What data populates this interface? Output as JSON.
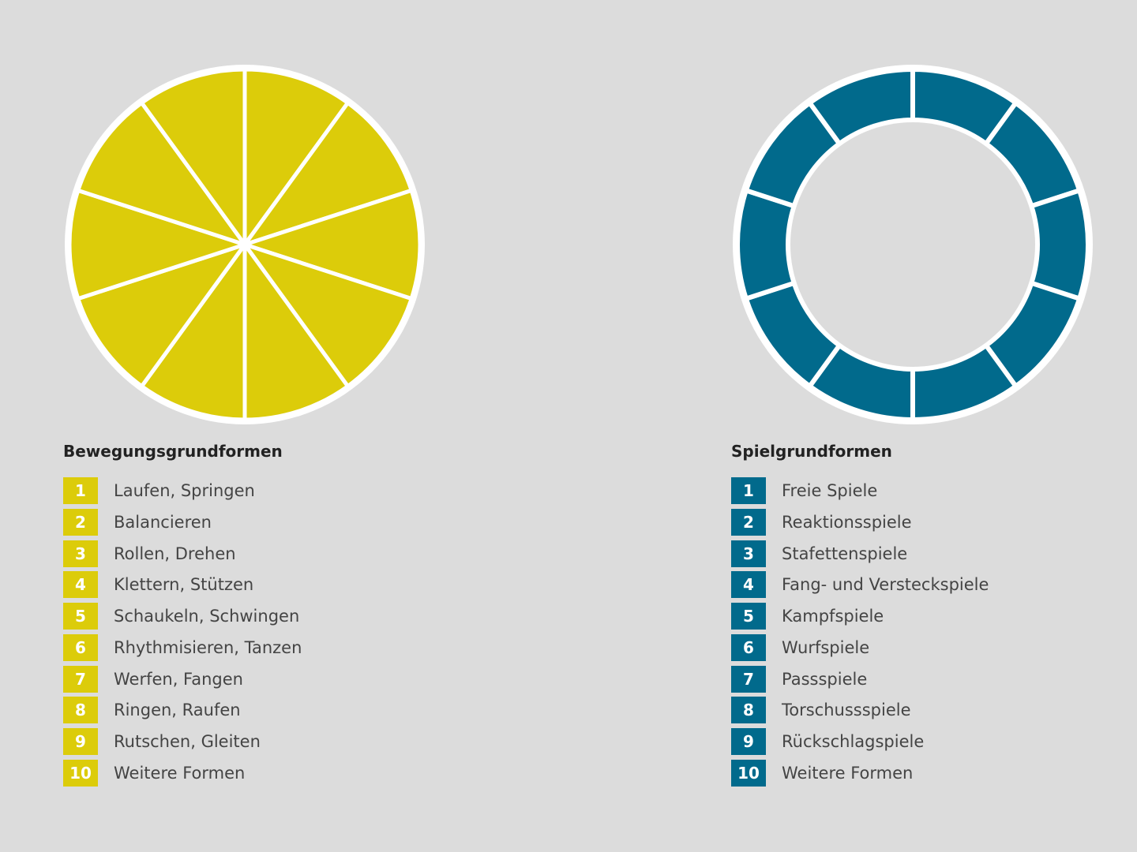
{
  "colors": {
    "yellow": "#dccc0a",
    "teal": "#016a8c",
    "background": "#dcdcdc",
    "divider": "#ffffff"
  },
  "chart_data": [
    {
      "type": "pie",
      "title": "Bewegungsgrundformen",
      "color": "#dccc0a",
      "categories": [
        "Laufen, Springen",
        "Balancieren",
        "Rollen, Drehen",
        "Klettern, Stützen",
        "Schaukeln, Schwingen",
        "Rhythmisieren, Tanzen",
        "Werfen, Fangen",
        "Ringen, Raufen",
        "Rutschen, Gleiten",
        "Weitere Formen"
      ],
      "values": [
        1,
        1,
        1,
        1,
        1,
        1,
        1,
        1,
        1,
        1
      ]
    },
    {
      "type": "pie",
      "title": "Spielgrundformen",
      "color": "#016a8c",
      "categories": [
        "Freie Spiele",
        "Reaktionsspiele",
        "Stafettenspiele",
        "Fang- und Versteckspiele",
        "Kampfspiele",
        "Wurfspiele",
        "Passspiele",
        "Torschussspiele",
        "Rückschlagspiele",
        "Weitere Formen"
      ],
      "values": [
        1,
        1,
        1,
        1,
        1,
        1,
        1,
        1,
        1,
        1
      ]
    }
  ],
  "left": {
    "title": "Bewegungsgrundformen",
    "items": [
      {
        "num": "1",
        "label": "Laufen, Springen"
      },
      {
        "num": "2",
        "label": "Balancieren"
      },
      {
        "num": "3",
        "label": "Rollen, Drehen"
      },
      {
        "num": "4",
        "label": "Klettern, Stützen"
      },
      {
        "num": "5",
        "label": "Schaukeln, Schwingen"
      },
      {
        "num": "6",
        "label": "Rhythmisieren, Tanzen"
      },
      {
        "num": "7",
        "label": "Werfen, Fangen"
      },
      {
        "num": "8",
        "label": "Ringen, Raufen"
      },
      {
        "num": "9",
        "label": "Rutschen, Gleiten"
      },
      {
        "num": "10",
        "label": "Weitere Formen"
      }
    ]
  },
  "right": {
    "title": "Spielgrundformen",
    "items": [
      {
        "num": "1",
        "label": "Freie Spiele"
      },
      {
        "num": "2",
        "label": "Reaktionsspiele"
      },
      {
        "num": "3",
        "label": "Stafettenspiele"
      },
      {
        "num": "4",
        "label": "Fang- und Versteckspiele"
      },
      {
        "num": "5",
        "label": "Kampfspiele"
      },
      {
        "num": "6",
        "label": "Wurfspiele"
      },
      {
        "num": "7",
        "label": "Passspiele"
      },
      {
        "num": "8",
        "label": "Torschussspiele"
      },
      {
        "num": "9",
        "label": "Rückschlagspiele"
      },
      {
        "num": "10",
        "label": "Weitere Formen"
      }
    ]
  }
}
